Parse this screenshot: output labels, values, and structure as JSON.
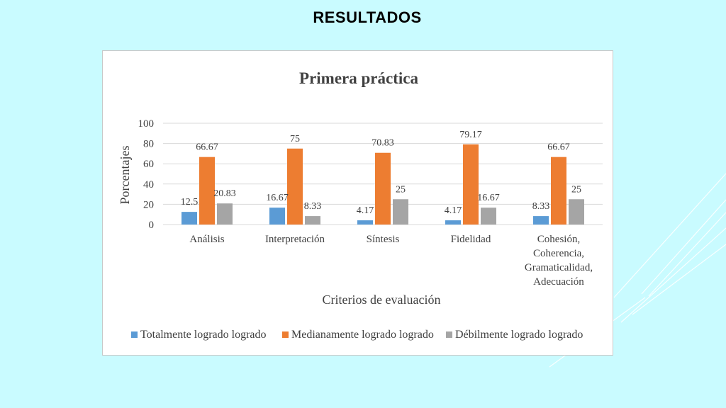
{
  "slide": {
    "title": "RESULTADOS"
  },
  "colors": {
    "background": "#c9fbff",
    "series": [
      "#5b9bd5",
      "#ed7d31",
      "#a5a5a5"
    ],
    "gridline": "#d9d9d9",
    "decoration": "#ffffff"
  },
  "chart_data": {
    "type": "bar",
    "title": "Primera práctica",
    "xlabel": "Criterios de evaluación",
    "ylabel": "Porcentajes",
    "ylim": [
      0,
      100
    ],
    "yticks": [
      0,
      20,
      40,
      60,
      80,
      100
    ],
    "grid": true,
    "legend_position": "bottom",
    "categories": [
      [
        "Análisis"
      ],
      [
        "Interpretación"
      ],
      [
        "Síntesis"
      ],
      [
        "Fidelidad"
      ],
      [
        "Cohesión,",
        "Coherencia,",
        "Gramaticalidad,",
        "Adecuación"
      ]
    ],
    "series": [
      {
        "name": "Totalmente logrado logrado",
        "values": [
          12.5,
          16.67,
          4.17,
          4.17,
          8.33
        ],
        "labels": [
          "12.5",
          "16.67",
          "4.17",
          "4.17",
          "8.33"
        ]
      },
      {
        "name": "Medianamente logrado logrado",
        "values": [
          66.67,
          75,
          70.83,
          79.17,
          66.67
        ],
        "labels": [
          "66.67",
          "75",
          "70.83",
          "79.17",
          "66.67"
        ]
      },
      {
        "name": "Débilmente logrado logrado",
        "values": [
          20.83,
          8.33,
          25,
          16.67,
          25
        ],
        "labels": [
          "20.83",
          "8.33",
          "25",
          "16.67",
          "25"
        ]
      }
    ]
  }
}
